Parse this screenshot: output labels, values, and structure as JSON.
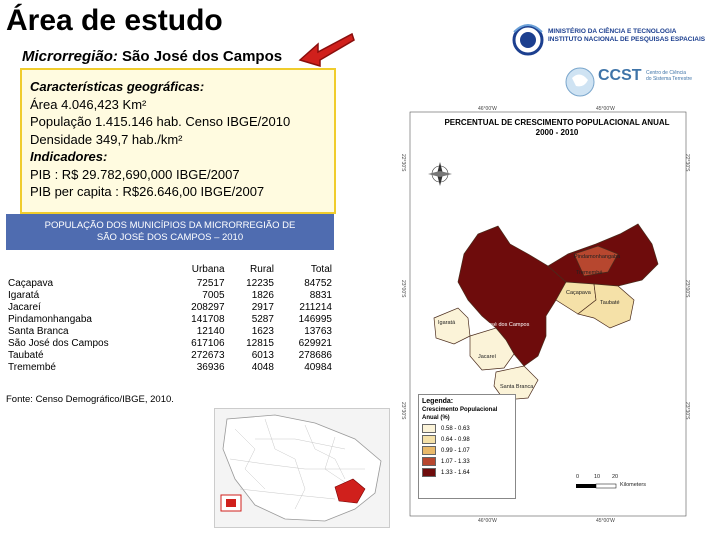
{
  "header": {
    "title": "Área de estudo",
    "subtitle_label": "Microrregião:",
    "subtitle_value": "São José dos Campos"
  },
  "geo_box": {
    "heading": "Características geográficas:",
    "area": "Área 4.046,423 Km²",
    "population": "População 1.415.146 hab. Censo IBGE/2010",
    "density": "Densidade 349,7 hab./km²",
    "indicators_heading": "Indicadores:",
    "pib": "PIB : R$ 29.782,690,000 IBGE/2007",
    "pib_per_capita": "PIB per capita : R$26.646,00 IBGE/2007"
  },
  "pop_table": {
    "title_line1": "POPULAÇÃO DOS MUNICÍPIOS DA MICRORREGIÃO DE",
    "title_line2": "SÃO JOSÉ DOS CAMPOS – 2010",
    "columns": [
      "",
      "Urbana",
      "Rural",
      "Total"
    ],
    "rows": [
      [
        "Caçapava",
        "72517",
        "12235",
        "84752"
      ],
      [
        "Igaratá",
        "7005",
        "1826",
        "8831"
      ],
      [
        "Jacareí",
        "208297",
        "2917",
        "211214"
      ],
      [
        "Pindamonhangaba",
        "141708",
        "5287",
        "146995"
      ],
      [
        "Santa Branca",
        "12140",
        "1623",
        "13763"
      ],
      [
        "São José dos Campos",
        "617106",
        "12815",
        "629921"
      ],
      [
        "Taubaté",
        "272673",
        "6013",
        "278686"
      ],
      [
        "Tremembé",
        "36936",
        "4048",
        "40984"
      ]
    ],
    "source": "Fonte: Censo Demográfico/IBGE, 2010."
  },
  "logos": {
    "inpe_line1": "MINISTÉRIO DA CIÊNCIA E TECNOLOGIA",
    "inpe_line2": "INSTITUTO NACIONAL DE PESQUISAS ESPACIAIS",
    "ccst_line1": "Centro de Ciência",
    "ccst_line2": "do Sistema Terrestre"
  },
  "map": {
    "title_line1": "PERCENTUAL DE CRESCIMENTO POPULACIONAL ANUAL",
    "title_line2": "2000 - 2010",
    "coords": {
      "top_left": "46°00'W",
      "top_right": "45°00'W",
      "bottom_left": "46°00'W",
      "bottom_right": "45°00'W",
      "left_top": "22°30'S",
      "left_mid": "23°00'S",
      "left_bottom": "23°30'S",
      "right_top": "22°30'S",
      "right_mid": "23°00'S",
      "right_bottom": "23°30'S"
    },
    "municipalities": {
      "pinda": "Pindamonhangaba",
      "tremembe": "Tremembé",
      "cacapava": "Caçapava",
      "taubate": "Taubaté",
      "sjc": "São José dos Campos",
      "igarata": "Igaratá",
      "jacarei": "Jacareí",
      "santa_branca": "Santa Branca"
    },
    "legend": {
      "title": "Legenda:",
      "subtitle_line1": "Crescimento Populacional",
      "subtitle_line2": "Anual (%)",
      "items": [
        {
          "label": "0.58 - 0.63",
          "color": "#fbf3d8"
        },
        {
          "label": "0.64 - 0.98",
          "color": "#f5e1a8"
        },
        {
          "label": "0.99 - 1.07",
          "color": "#e9b96a"
        },
        {
          "label": "1.07 - 1.33",
          "color": "#b7472f"
        },
        {
          "label": "1.33 - 1.64",
          "color": "#6e0c0c"
        }
      ]
    },
    "scale": {
      "zero": "0",
      "ten": "10",
      "twenty": "20",
      "unit": "Kilometers"
    }
  }
}
